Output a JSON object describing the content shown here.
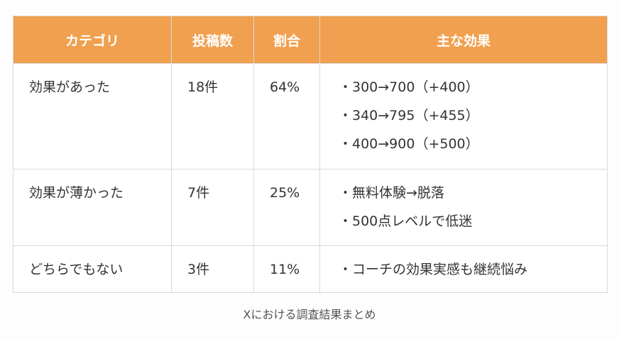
{
  "table": {
    "headers": [
      "カテゴリ",
      "投稿数",
      "割合",
      "主な効果"
    ],
    "rows": [
      {
        "category": "効果があった",
        "posts": "18件",
        "ratio": "64%",
        "effects": [
          "・300→700（+400）",
          "・340→795（+455）",
          "・400→900（+500）"
        ]
      },
      {
        "category": "効果が薄かった",
        "posts": "7件",
        "ratio": "25%",
        "effects": [
          "・無料体験→脱落",
          "・500点レベルで低迷"
        ]
      },
      {
        "category": "どちらでもない",
        "posts": "3件",
        "ratio": "11%",
        "effects": [
          "・コーチの効果実感も継続悩み"
        ]
      }
    ]
  },
  "caption": "Xにおける調査結果まとめ",
  "colors": {
    "header_bg": "#f0a04f",
    "header_text": "#ffffff",
    "border": "#d9d9d9"
  }
}
